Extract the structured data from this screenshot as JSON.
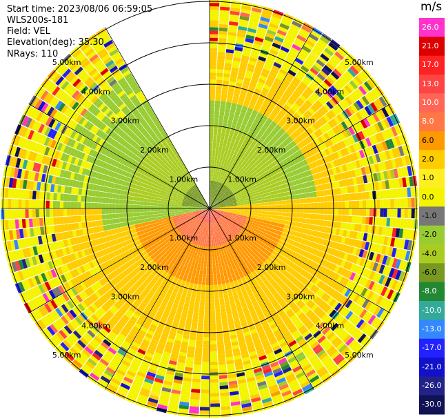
{
  "header": {
    "start_time": "Start time: 2023/08/06 06:59:05",
    "instrument": "WLS200s-181",
    "field": "Field: VEL",
    "elevation": "Elevation(deg): 35.30",
    "nrays": "NRays: 110"
  },
  "chart_data": {
    "type": "heatmap",
    "projection": "polar-ppi",
    "field": "VEL",
    "units": "m/s",
    "elevation_deg": 35.3,
    "n_rays": 110,
    "range_rings_km": [
      1.0,
      2.0,
      3.0,
      4.0,
      5.0
    ],
    "ring_labels": [
      "1.00km",
      "2.00km",
      "3.00km",
      "4.00km",
      "5.00km"
    ],
    "missing_sector_deg": [
      -30,
      0
    ],
    "colorbar": {
      "title": "m/s",
      "ticks": [
        "26.0",
        "21.0",
        "17.0",
        "13.0",
        "10.0",
        "8.0",
        "6.0",
        "2.0",
        "1.0",
        "0.0",
        "-1.0",
        "-2.0",
        "-4.0",
        "-6.0",
        "-8.0",
        "-10.0",
        "-13.0",
        "-17.0",
        "-21.0",
        "-26.0",
        "-30.0"
      ],
      "colors": [
        "#ff33cc",
        "#dd0000",
        "#ff2222",
        "#ff4444",
        "#ff6655",
        "#ff7744",
        "#ff9900",
        "#ffcc00",
        "#ffee22",
        "#f4f400",
        "#777777",
        "#99cc33",
        "#aacc22",
        "#779922",
        "#228833",
        "#33aa99",
        "#3388ff",
        "#2222ff",
        "#1111cc",
        "#222288",
        "#111155"
      ]
    },
    "pattern_description_values": {
      "near_range_north_west": -6.0,
      "near_range_south": 10.0,
      "mid_range_south": 2.0,
      "far_range": 0.0
    }
  }
}
